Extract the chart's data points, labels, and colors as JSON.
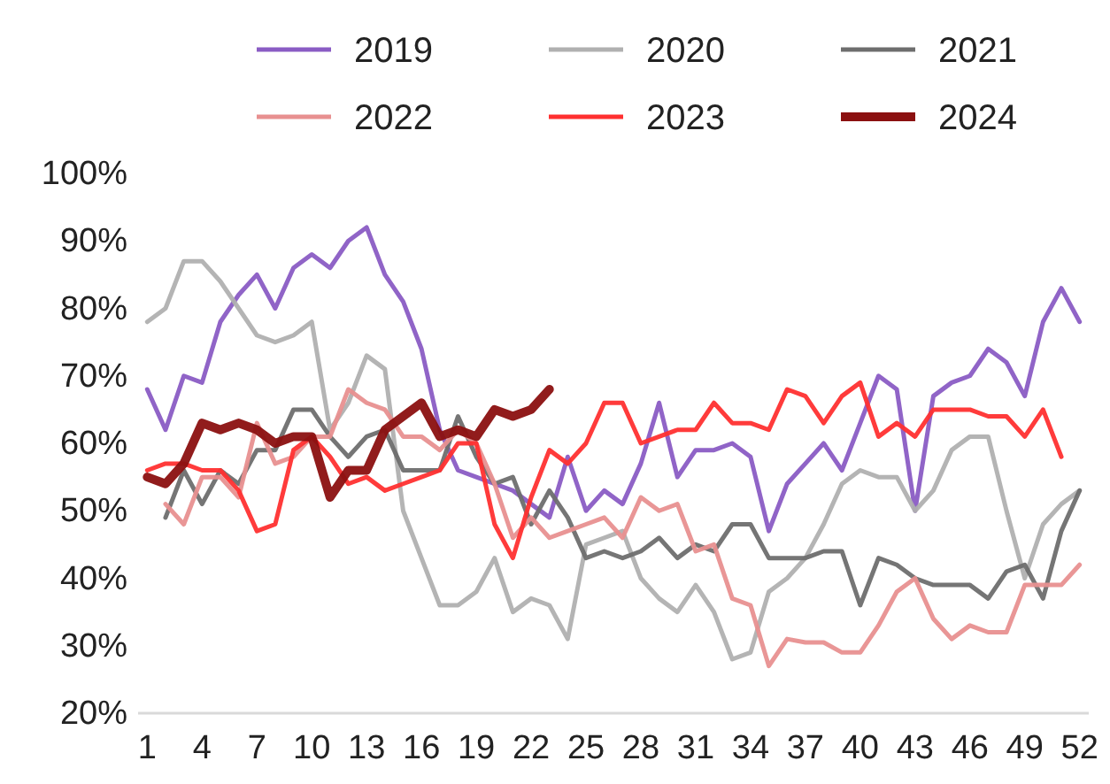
{
  "chart_data": {
    "type": "line",
    "legend": "top",
    "grid": false,
    "marker": "none",
    "line_style": "solid",
    "x": [
      1,
      2,
      3,
      4,
      5,
      6,
      7,
      8,
      9,
      10,
      11,
      12,
      13,
      14,
      15,
      16,
      17,
      18,
      19,
      20,
      21,
      22,
      23,
      24,
      25,
      26,
      27,
      28,
      29,
      30,
      31,
      32,
      33,
      34,
      35,
      36,
      37,
      38,
      39,
      40,
      41,
      42,
      43,
      44,
      45,
      46,
      47,
      48,
      49,
      50,
      51,
      52
    ],
    "xlim": [
      0.5,
      52.5
    ],
    "xticks": [
      1,
      4,
      7,
      10,
      13,
      16,
      19,
      22,
      25,
      28,
      31,
      34,
      37,
      40,
      43,
      46,
      49,
      52
    ],
    "ylim": [
      20,
      100
    ],
    "yticks": [
      {
        "value": 20,
        "label": "20%"
      },
      {
        "value": 30,
        "label": "30%"
      },
      {
        "value": 40,
        "label": "40%"
      },
      {
        "value": 50,
        "label": "50%"
      },
      {
        "value": 60,
        "label": "60%"
      },
      {
        "value": 70,
        "label": "70%"
      },
      {
        "value": 80,
        "label": "80%"
      },
      {
        "value": 90,
        "label": "90%"
      },
      {
        "value": 100,
        "label": "100%"
      }
    ],
    "series": [
      {
        "name": "2019",
        "color": "#8a5cc4",
        "values": [
          68,
          62,
          70,
          69,
          78,
          82,
          85,
          80,
          86,
          88,
          86,
          90,
          92,
          85,
          81,
          74,
          62,
          56,
          55,
          54,
          53,
          51,
          49,
          58,
          50,
          53,
          51,
          57,
          66,
          55,
          59,
          59,
          60,
          58,
          47,
          54,
          57,
          60,
          56,
          63,
          70,
          68,
          50,
          67,
          69,
          70,
          74,
          72,
          67,
          78,
          83,
          78
        ]
      },
      {
        "name": "2020",
        "color": "#b0b0b0",
        "values": [
          78,
          80,
          87,
          87,
          84,
          80,
          76,
          75,
          76,
          78,
          62,
          66,
          73,
          71,
          50,
          43,
          36,
          36,
          38,
          43,
          35,
          37,
          36,
          31,
          45,
          46,
          47,
          40,
          37,
          35,
          39,
          35,
          28,
          29,
          38,
          40,
          43,
          48,
          54,
          56,
          55,
          55,
          50,
          53,
          59,
          61,
          61,
          50,
          40,
          48,
          51,
          53
        ]
      },
      {
        "name": "2021",
        "color": "#6e6e6e",
        "values": [
          null,
          49,
          56,
          51,
          56,
          54,
          59,
          59,
          65,
          65,
          61,
          58,
          61,
          62,
          56,
          56,
          56,
          64,
          58,
          54,
          55,
          48,
          53,
          49,
          43,
          44,
          43,
          44,
          46,
          43,
          45,
          44,
          48,
          48,
          43,
          43,
          43,
          44,
          44,
          36,
          43,
          42,
          40,
          39,
          39,
          39,
          37,
          41,
          42,
          37,
          47,
          53
        ]
      },
      {
        "name": "2022",
        "color": "#e89090",
        "values": [
          null,
          51,
          48,
          55,
          55,
          52,
          63,
          57,
          58,
          61,
          61,
          68,
          66,
          65,
          61,
          61,
          59,
          62,
          60,
          54,
          46,
          49,
          46,
          47,
          48,
          49,
          46,
          52,
          50,
          51,
          44,
          45,
          37,
          36,
          27,
          31,
          30.5,
          30.5,
          29,
          29,
          33,
          38,
          40,
          34,
          31,
          33,
          32,
          32,
          39,
          39,
          39,
          42
        ]
      },
      {
        "name": "2023",
        "color": "#ff3030",
        "values": [
          56,
          57,
          57,
          56,
          56,
          53,
          47,
          48,
          59,
          61,
          58,
          54,
          55,
          53,
          54,
          55,
          56,
          60,
          60,
          48,
          43,
          52,
          59,
          57,
          60,
          66,
          66,
          60,
          61,
          62,
          62,
          66,
          63,
          63,
          62,
          68,
          67,
          63,
          67,
          69,
          61,
          63,
          61,
          65,
          65,
          65,
          64,
          64,
          61,
          65,
          58,
          null
        ]
      },
      {
        "name": "2024",
        "color": "#8b1010",
        "values": [
          55,
          54,
          57,
          63,
          62,
          63,
          62,
          60,
          61,
          61,
          52,
          56,
          56,
          62,
          64,
          66,
          61,
          62,
          61,
          65,
          64,
          65,
          68,
          null,
          null,
          null,
          null,
          null,
          null,
          null,
          null,
          null,
          null,
          null,
          null,
          null,
          null,
          null,
          null,
          null,
          null,
          null,
          null,
          null,
          null,
          null,
          null,
          null,
          null,
          null,
          null,
          null
        ]
      }
    ]
  }
}
